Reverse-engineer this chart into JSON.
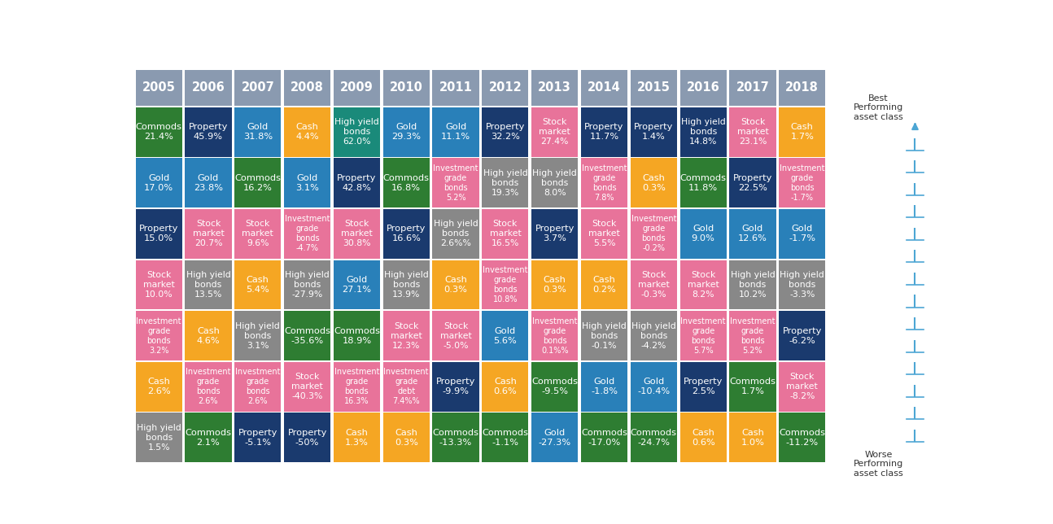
{
  "years": [
    "2005",
    "2006",
    "2007",
    "2008",
    "2009",
    "2010",
    "2011",
    "2012",
    "2013",
    "2014",
    "2015",
    "2016",
    "2017",
    "2018"
  ],
  "rows": [
    [
      {
        "label": "Commods\n21.4%",
        "color": "#2e7d32"
      },
      {
        "label": "Property\n45.9%",
        "color": "#1a3a6e"
      },
      {
        "label": "Gold\n31.8%",
        "color": "#2980b9"
      },
      {
        "label": "Cash\n4.4%",
        "color": "#f5a623"
      },
      {
        "label": "High yield\nbonds\n62.0%",
        "color": "#1a8a7a"
      },
      {
        "label": "Gold\n29.3%",
        "color": "#2980b9"
      },
      {
        "label": "Gold\n11.1%",
        "color": "#2980b9"
      },
      {
        "label": "Property\n32.2%",
        "color": "#1a3a6e"
      },
      {
        "label": "Stock\nmarket\n27.4%",
        "color": "#e8739a"
      },
      {
        "label": "Property\n11.7%",
        "color": "#1a3a6e"
      },
      {
        "label": "Property\n1.4%",
        "color": "#1a3a6e"
      },
      {
        "label": "High yield\nbonds\n14.8%",
        "color": "#1a3a6e"
      },
      {
        "label": "Stock\nmarket\n23.1%",
        "color": "#e8739a"
      },
      {
        "label": "Cash\n1.7%",
        "color": "#f5a623"
      }
    ],
    [
      {
        "label": "Gold\n17.0%",
        "color": "#2980b9"
      },
      {
        "label": "Gold\n23.8%",
        "color": "#2980b9"
      },
      {
        "label": "Commods\n16.2%",
        "color": "#2e7d32"
      },
      {
        "label": "Gold\n3.1%",
        "color": "#2980b9"
      },
      {
        "label": "Property\n42.8%",
        "color": "#1a3a6e"
      },
      {
        "label": "Commods\n16.8%",
        "color": "#2e7d32"
      },
      {
        "label": "Investment\ngrade\nbonds\n5.2%",
        "color": "#e8739a"
      },
      {
        "label": "High yield\nbonds\n19.3%",
        "color": "#888888"
      },
      {
        "label": "High yield\nbonds\n8.0%",
        "color": "#888888"
      },
      {
        "label": "Investment\ngrade\nbonds\n7.8%",
        "color": "#e8739a"
      },
      {
        "label": "Cash\n0.3%",
        "color": "#f5a623"
      },
      {
        "label": "Commods\n11.8%",
        "color": "#2e7d32"
      },
      {
        "label": "Property\n22.5%",
        "color": "#1a3a6e"
      },
      {
        "label": "Investment\ngrade\nbonds\n-1.7%",
        "color": "#e8739a"
      }
    ],
    [
      {
        "label": "Property\n15.0%",
        "color": "#1a3a6e"
      },
      {
        "label": "Stock\nmarket\n20.7%",
        "color": "#e8739a"
      },
      {
        "label": "Stock\nmarket\n9.6%",
        "color": "#e8739a"
      },
      {
        "label": "Investment\ngrade\nbonds\n-4.7%",
        "color": "#e8739a"
      },
      {
        "label": "Stock\nmarket\n30.8%",
        "color": "#e8739a"
      },
      {
        "label": "Property\n16.6%",
        "color": "#1a3a6e"
      },
      {
        "label": "High yield\nbonds\n2.6%%",
        "color": "#888888"
      },
      {
        "label": "Stock\nmarket\n16.5%",
        "color": "#e8739a"
      },
      {
        "label": "Property\n3.7%",
        "color": "#1a3a6e"
      },
      {
        "label": "Stock\nmarket\n5.5%",
        "color": "#e8739a"
      },
      {
        "label": "Investment\ngrade\nbonds\n-0.2%",
        "color": "#e8739a"
      },
      {
        "label": "Gold\n9.0%",
        "color": "#2980b9"
      },
      {
        "label": "Gold\n12.6%",
        "color": "#2980b9"
      },
      {
        "label": "Gold\n-1.7%",
        "color": "#2980b9"
      }
    ],
    [
      {
        "label": "Stock\nmarket\n10.0%",
        "color": "#e8739a"
      },
      {
        "label": "High yield\nbonds\n13.5%",
        "color": "#888888"
      },
      {
        "label": "Cash\n5.4%",
        "color": "#f5a623"
      },
      {
        "label": "High yield\nbonds\n-27.9%",
        "color": "#888888"
      },
      {
        "label": "Gold\n27.1%",
        "color": "#2980b9"
      },
      {
        "label": "High yield\nbonds\n13.9%",
        "color": "#888888"
      },
      {
        "label": "Cash\n0.3%",
        "color": "#f5a623"
      },
      {
        "label": "Investment\ngrade\nbonds\n10.8%",
        "color": "#e8739a"
      },
      {
        "label": "Cash\n0.3%",
        "color": "#f5a623"
      },
      {
        "label": "Cash\n0.2%",
        "color": "#f5a623"
      },
      {
        "label": "Stock\nmarket\n-0.3%",
        "color": "#e8739a"
      },
      {
        "label": "Stock\nmarket\n8.2%",
        "color": "#e8739a"
      },
      {
        "label": "High yield\nbonds\n10.2%",
        "color": "#888888"
      },
      {
        "label": "High yield\nbonds\n-3.3%",
        "color": "#888888"
      }
    ],
    [
      {
        "label": "Investment\ngrade\nbonds\n3.2%",
        "color": "#e8739a"
      },
      {
        "label": "Cash\n4.6%",
        "color": "#f5a623"
      },
      {
        "label": "High yield\nbonds\n3.1%",
        "color": "#888888"
      },
      {
        "label": "Commods\n-35.6%",
        "color": "#2e7d32"
      },
      {
        "label": "Commods\n18.9%",
        "color": "#2e7d32"
      },
      {
        "label": "Stock\nmarket\n12.3%",
        "color": "#e8739a"
      },
      {
        "label": "Stock\nmarket\n-5.0%",
        "color": "#e8739a"
      },
      {
        "label": "Gold\n5.6%",
        "color": "#2980b9"
      },
      {
        "label": "Investment\ngrade\nbonds\n0.1%%",
        "color": "#e8739a"
      },
      {
        "label": "High yield\nbonds\n-0.1%",
        "color": "#888888"
      },
      {
        "label": "High yield\nbonds\n-4.2%",
        "color": "#888888"
      },
      {
        "label": "Investment\ngrade\nbonds\n5.7%",
        "color": "#e8739a"
      },
      {
        "label": "Investment\ngrade\nbonds\n5.2%",
        "color": "#e8739a"
      },
      {
        "label": "Property\n-6.2%",
        "color": "#1a3a6e"
      }
    ],
    [
      {
        "label": "Cash\n2.6%",
        "color": "#f5a623"
      },
      {
        "label": "Investment\ngrade\nbonds\n2.6%",
        "color": "#e8739a"
      },
      {
        "label": "Investment\ngrade\nbonds\n2.6%",
        "color": "#e8739a"
      },
      {
        "label": "Stock\nmarket\n-40.3%",
        "color": "#e8739a"
      },
      {
        "label": "Investment\ngrade\nbonds\n16.3%",
        "color": "#e8739a"
      },
      {
        "label": "Investment\ngrade\ndebt\n7.4%%",
        "color": "#e8739a"
      },
      {
        "label": "Property\n-9.9%",
        "color": "#1a3a6e"
      },
      {
        "label": "Cash\n0.6%",
        "color": "#f5a623"
      },
      {
        "label": "Commods\n-9.5%",
        "color": "#2e7d32"
      },
      {
        "label": "Gold\n-1.8%",
        "color": "#2980b9"
      },
      {
        "label": "Gold\n-10.4%",
        "color": "#2980b9"
      },
      {
        "label": "Property\n2.5%",
        "color": "#1a3a6e"
      },
      {
        "label": "Commods\n1.7%",
        "color": "#2e7d32"
      },
      {
        "label": "Stock\nmarket\n-8.2%",
        "color": "#e8739a"
      }
    ],
    [
      {
        "label": "High yield\nbonds\n1.5%",
        "color": "#888888"
      },
      {
        "label": "Commods\n2.1%",
        "color": "#2e7d32"
      },
      {
        "label": "Property\n-5.1%",
        "color": "#1a3a6e"
      },
      {
        "label": "Property\n-50%",
        "color": "#1a3a6e"
      },
      {
        "label": "Cash\n1.3%",
        "color": "#f5a623"
      },
      {
        "label": "Cash\n0.3%",
        "color": "#f5a623"
      },
      {
        "label": "Commods\n-13.3%",
        "color": "#2e7d32"
      },
      {
        "label": "Commods\n-1.1%",
        "color": "#2e7d32"
      },
      {
        "label": "Gold\n-27.3%",
        "color": "#2980b9"
      },
      {
        "label": "Commods\n-17.0%",
        "color": "#2e7d32"
      },
      {
        "label": "Commods\n-24.7%",
        "color": "#2e7d32"
      },
      {
        "label": "Cash\n0.6%",
        "color": "#f5a623"
      },
      {
        "label": "Cash\n1.0%",
        "color": "#f5a623"
      },
      {
        "label": "Commods\n-11.2%",
        "color": "#2e7d32"
      }
    ]
  ],
  "header_color": "#8a9ab0",
  "header_text_color": "#ffffff",
  "cell_text_color": "#ffffff",
  "background_color": "#ffffff",
  "arrow_color": "#4da6d4",
  "side_text_best": "Best\nPerforming\nasset class",
  "side_text_worst": "Worse\nPerforming\nasset class"
}
